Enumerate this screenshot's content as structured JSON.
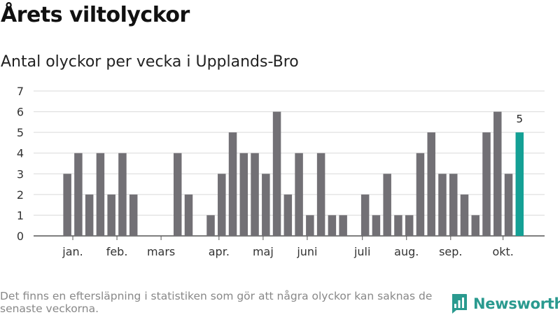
{
  "header": {
    "title": "Årets viltolyckor",
    "subtitle": "Antal olyckor per vecka i Upplands-Bro"
  },
  "footer": {
    "note": "Det finns en eftersläpning i statistiken som gör att några olyckor kan saknas de senaste veckorna.",
    "brand": "Newsworthy",
    "brand_icon": "bar-chart-logo-icon"
  },
  "colors": {
    "bar": "#727075",
    "highlight": "#14a095",
    "grid": "#d9d9d9",
    "brand": "#2a9a8f"
  },
  "chart_data": {
    "type": "bar",
    "title": "Årets viltolyckor",
    "subtitle": "Antal olyckor per vecka i Upplands-Bro",
    "xlabel": "",
    "ylabel": "",
    "ylim": [
      0,
      7
    ],
    "yticks": [
      0,
      1,
      2,
      3,
      4,
      5,
      6,
      7
    ],
    "grid": true,
    "weeks": [
      1,
      2,
      3,
      4,
      5,
      6,
      7,
      8,
      9,
      10,
      11,
      12,
      13,
      14,
      15,
      16,
      17,
      18,
      19,
      20,
      21,
      22,
      23,
      24,
      25,
      26,
      27,
      28,
      29,
      30,
      31,
      32,
      33,
      34,
      35,
      36,
      37,
      38,
      39,
      40,
      41,
      42,
      43,
      44
    ],
    "values": [
      0,
      3,
      4,
      2,
      4,
      2,
      4,
      2,
      0,
      0,
      0,
      4,
      2,
      0,
      1,
      3,
      5,
      4,
      4,
      3,
      6,
      2,
      4,
      1,
      4,
      1,
      1,
      0,
      2,
      1,
      3,
      1,
      1,
      4,
      5,
      3,
      3,
      2,
      1,
      5,
      6,
      3,
      5,
      0
    ],
    "highlight_index": 42,
    "highlight_label": "5",
    "month_labels": [
      {
        "label": "jan.",
        "week": 2.5
      },
      {
        "label": "feb.",
        "week": 6.5
      },
      {
        "label": "mars",
        "week": 10.5
      },
      {
        "label": "apr.",
        "week": 15.75
      },
      {
        "label": "maj",
        "week": 19.75
      },
      {
        "label": "juni",
        "week": 23.75
      },
      {
        "label": "juli",
        "week": 28.75
      },
      {
        "label": "aug.",
        "week": 32.75
      },
      {
        "label": "sep.",
        "week": 36.75
      },
      {
        "label": "okt.",
        "week": 41.5
      }
    ]
  }
}
